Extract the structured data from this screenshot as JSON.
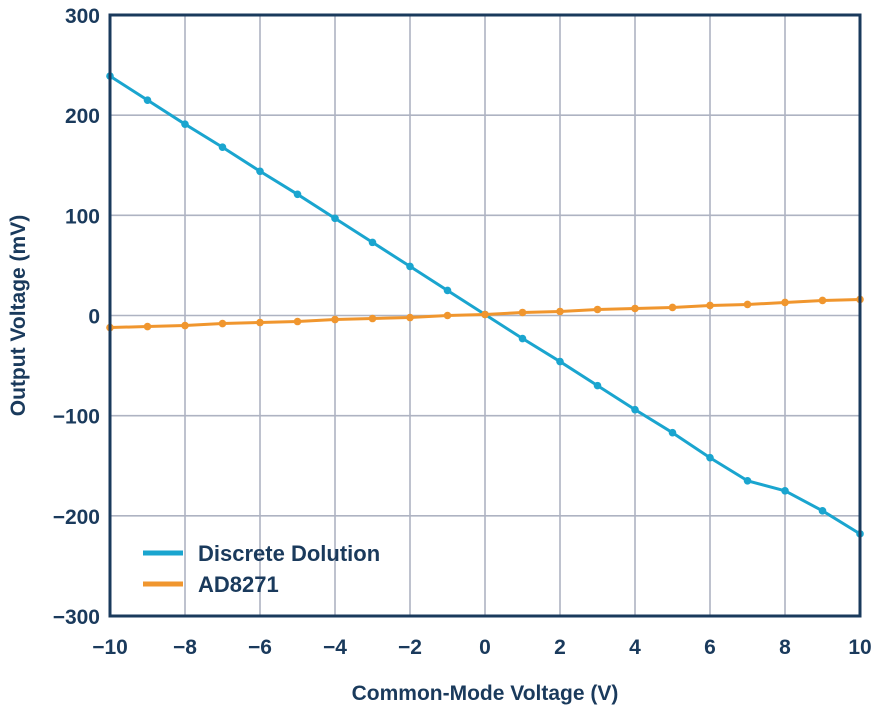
{
  "chart_data": {
    "type": "line",
    "title": "",
    "xlabel": "Common-Mode Voltage (V)",
    "ylabel": "Output Voltage (mV)",
    "xlim": [
      -10,
      10
    ],
    "ylim": [
      -300,
      300
    ],
    "x_ticks": [
      -10,
      -8,
      -6,
      -4,
      -2,
      0,
      2,
      4,
      6,
      8,
      10
    ],
    "y_ticks": [
      300,
      200,
      100,
      0,
      -100,
      -200,
      -300
    ],
    "x_tick_labels": [
      "−10",
      "−8",
      "−6",
      "−4",
      "−2",
      "0",
      "2",
      "4",
      "6",
      "8",
      "10"
    ],
    "y_tick_labels": [
      "300",
      "200",
      "100",
      "0",
      "−100",
      "−200",
      "−300"
    ],
    "grid": true,
    "legend_position": "bottom-left",
    "series": [
      {
        "name": "Discrete Dolution",
        "color": "#1aa5cf",
        "x": [
          -10,
          -9,
          -8,
          -7,
          -6,
          -5,
          -4,
          -3,
          -2,
          -1,
          0,
          1,
          2,
          3,
          4,
          5,
          6,
          7,
          8,
          9,
          10
        ],
        "y": [
          239,
          215,
          191,
          168,
          144,
          121,
          97,
          73,
          49,
          25,
          1,
          -23,
          -46,
          -70,
          -94,
          -117,
          -142,
          -165,
          -175,
          -195,
          -218
        ]
      },
      {
        "name": "AD8271",
        "color": "#f0962e",
        "x": [
          -10,
          -9,
          -8,
          -7,
          -6,
          -5,
          -4,
          -3,
          -2,
          -1,
          0,
          1,
          2,
          3,
          4,
          5,
          6,
          7,
          8,
          9,
          10
        ],
        "y": [
          -12,
          -11,
          -10,
          -8,
          -7,
          -6,
          -4,
          -3,
          -2,
          0,
          1,
          3,
          4,
          6,
          7,
          8,
          10,
          11,
          13,
          15,
          16
        ]
      }
    ]
  }
}
